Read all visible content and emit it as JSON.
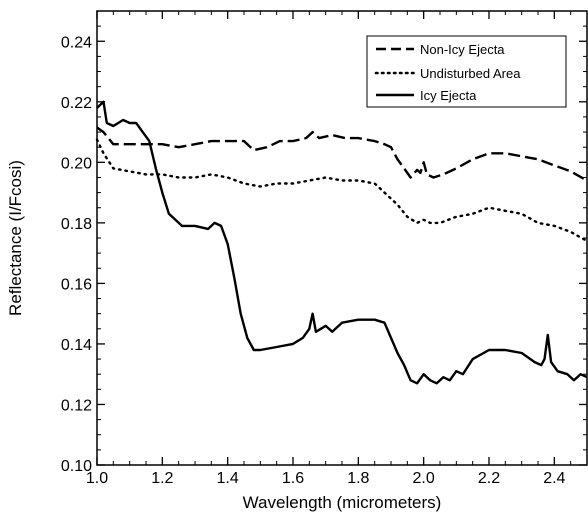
{
  "chart_data": {
    "type": "line",
    "title": "",
    "xlabel": "Wavelength (micrometers)",
    "ylabel": "Reflectance (I/Fcosi)",
    "xlim": [
      1.0,
      2.5
    ],
    "ylim": [
      0.1,
      0.25
    ],
    "xticks": [
      1.0,
      1.2,
      1.4,
      1.6,
      1.8,
      2.0,
      2.2,
      2.4
    ],
    "xtick_labels": [
      "1.0",
      "1.2",
      "1.4",
      "1.6",
      "1.8",
      "2.0",
      "2.2",
      "2.4"
    ],
    "yticks": [
      0.1,
      0.12,
      0.14,
      0.16,
      0.18,
      0.2,
      0.22,
      0.24
    ],
    "ytick_labels": [
      "0.10",
      "0.12",
      "0.14",
      "0.16",
      "0.18",
      "0.20",
      "0.22",
      "0.24"
    ],
    "grid": false,
    "legend_position": "top-right",
    "series": [
      {
        "name": "Non-Icy Ejecta",
        "style": "dashed",
        "color": "#000000",
        "points": [
          [
            1.0,
            0.2115
          ],
          [
            1.02,
            0.21
          ],
          [
            1.05,
            0.206
          ],
          [
            1.1,
            0.206
          ],
          [
            1.15,
            0.206
          ],
          [
            1.2,
            0.206
          ],
          [
            1.25,
            0.205
          ],
          [
            1.3,
            0.206
          ],
          [
            1.35,
            0.207
          ],
          [
            1.4,
            0.207
          ],
          [
            1.45,
            0.207
          ],
          [
            1.48,
            0.204
          ],
          [
            1.52,
            0.205
          ],
          [
            1.56,
            0.207
          ],
          [
            1.6,
            0.207
          ],
          [
            1.64,
            0.208
          ],
          [
            1.66,
            0.21
          ],
          [
            1.68,
            0.208
          ],
          [
            1.72,
            0.209
          ],
          [
            1.76,
            0.208
          ],
          [
            1.8,
            0.208
          ],
          [
            1.85,
            0.207
          ],
          [
            1.88,
            0.206
          ],
          [
            1.9,
            0.205
          ],
          [
            1.92,
            0.201
          ],
          [
            1.94,
            0.198
          ],
          [
            1.96,
            0.195
          ],
          [
            1.98,
            0.1975
          ],
          [
            1.99,
            0.1965
          ],
          [
            2.0,
            0.2
          ],
          [
            2.01,
            0.196
          ],
          [
            2.03,
            0.195
          ],
          [
            2.06,
            0.196
          ],
          [
            2.1,
            0.198
          ],
          [
            2.15,
            0.201
          ],
          [
            2.2,
            0.203
          ],
          [
            2.25,
            0.203
          ],
          [
            2.3,
            0.202
          ],
          [
            2.35,
            0.201
          ],
          [
            2.4,
            0.199
          ],
          [
            2.45,
            0.197
          ],
          [
            2.5,
            0.194
          ]
        ]
      },
      {
        "name": "Undisturbed Area",
        "style": "dotted",
        "color": "#000000",
        "points": [
          [
            1.0,
            0.2075
          ],
          [
            1.02,
            0.203
          ],
          [
            1.05,
            0.198
          ],
          [
            1.1,
            0.197
          ],
          [
            1.15,
            0.196
          ],
          [
            1.2,
            0.196
          ],
          [
            1.25,
            0.195
          ],
          [
            1.3,
            0.195
          ],
          [
            1.35,
            0.196
          ],
          [
            1.4,
            0.195
          ],
          [
            1.45,
            0.193
          ],
          [
            1.5,
            0.192
          ],
          [
            1.55,
            0.193
          ],
          [
            1.6,
            0.193
          ],
          [
            1.65,
            0.194
          ],
          [
            1.7,
            0.195
          ],
          [
            1.75,
            0.194
          ],
          [
            1.8,
            0.194
          ],
          [
            1.85,
            0.193
          ],
          [
            1.88,
            0.19
          ],
          [
            1.92,
            0.186
          ],
          [
            1.95,
            0.182
          ],
          [
            1.98,
            0.18
          ],
          [
            2.0,
            0.181
          ],
          [
            2.02,
            0.18
          ],
          [
            2.05,
            0.18
          ],
          [
            2.1,
            0.182
          ],
          [
            2.15,
            0.183
          ],
          [
            2.2,
            0.185
          ],
          [
            2.25,
            0.184
          ],
          [
            2.3,
            0.183
          ],
          [
            2.35,
            0.18
          ],
          [
            2.4,
            0.179
          ],
          [
            2.45,
            0.177
          ],
          [
            2.5,
            0.174
          ]
        ]
      },
      {
        "name": "Icy Ejecta",
        "style": "solid",
        "color": "#000000",
        "points": [
          [
            1.0,
            0.218
          ],
          [
            1.02,
            0.22
          ],
          [
            1.03,
            0.213
          ],
          [
            1.05,
            0.212
          ],
          [
            1.08,
            0.214
          ],
          [
            1.1,
            0.213
          ],
          [
            1.12,
            0.213
          ],
          [
            1.14,
            0.21
          ],
          [
            1.16,
            0.207
          ],
          [
            1.18,
            0.198
          ],
          [
            1.2,
            0.19
          ],
          [
            1.22,
            0.183
          ],
          [
            1.24,
            0.181
          ],
          [
            1.26,
            0.179
          ],
          [
            1.3,
            0.179
          ],
          [
            1.34,
            0.178
          ],
          [
            1.36,
            0.18
          ],
          [
            1.38,
            0.179
          ],
          [
            1.4,
            0.173
          ],
          [
            1.42,
            0.162
          ],
          [
            1.44,
            0.15
          ],
          [
            1.46,
            0.142
          ],
          [
            1.48,
            0.138
          ],
          [
            1.5,
            0.138
          ],
          [
            1.55,
            0.139
          ],
          [
            1.6,
            0.14
          ],
          [
            1.63,
            0.142
          ],
          [
            1.65,
            0.145
          ],
          [
            1.66,
            0.15
          ],
          [
            1.67,
            0.144
          ],
          [
            1.7,
            0.146
          ],
          [
            1.72,
            0.144
          ],
          [
            1.75,
            0.147
          ],
          [
            1.8,
            0.148
          ],
          [
            1.85,
            0.148
          ],
          [
            1.88,
            0.147
          ],
          [
            1.9,
            0.142
          ],
          [
            1.92,
            0.137
          ],
          [
            1.94,
            0.133
          ],
          [
            1.96,
            0.128
          ],
          [
            1.98,
            0.127
          ],
          [
            2.0,
            0.13
          ],
          [
            2.02,
            0.128
          ],
          [
            2.04,
            0.127
          ],
          [
            2.06,
            0.129
          ],
          [
            2.08,
            0.128
          ],
          [
            2.1,
            0.131
          ],
          [
            2.12,
            0.13
          ],
          [
            2.15,
            0.135
          ],
          [
            2.2,
            0.138
          ],
          [
            2.25,
            0.138
          ],
          [
            2.3,
            0.137
          ],
          [
            2.34,
            0.134
          ],
          [
            2.36,
            0.133
          ],
          [
            2.37,
            0.135
          ],
          [
            2.38,
            0.143
          ],
          [
            2.39,
            0.134
          ],
          [
            2.41,
            0.131
          ],
          [
            2.44,
            0.13
          ],
          [
            2.46,
            0.128
          ],
          [
            2.48,
            0.13
          ],
          [
            2.5,
            0.129
          ]
        ]
      }
    ]
  }
}
